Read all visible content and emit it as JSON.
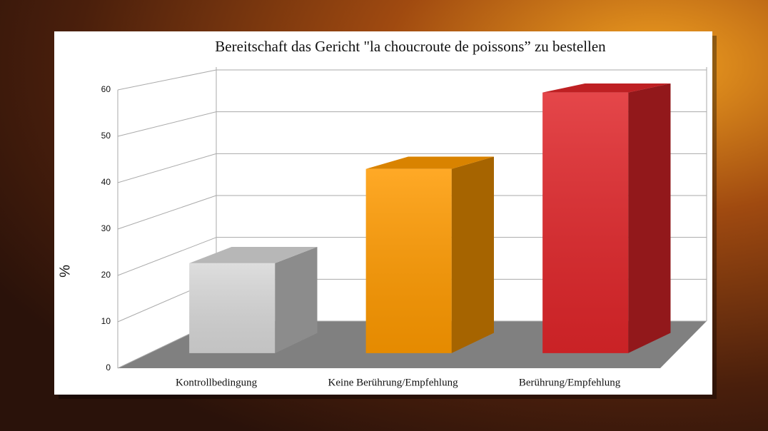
{
  "chart_data": {
    "type": "bar3d",
    "title": "Bereitschaft das Gericht \"la choucroute de poissons” zu bestellen",
    "y_label": "%",
    "categories": [
      "Kontrollbedingung",
      "Keine Berührung/Empfehlung",
      "Berührung/Empfehlung"
    ],
    "values": [
      20,
      41,
      58
    ],
    "colors": [
      "#d8d8d8",
      "#ff9a00",
      "#e0262a"
    ],
    "ylim": [
      0,
      60
    ],
    "yticks": [
      0,
      10,
      20,
      30,
      40,
      50,
      60
    ],
    "grid": true
  }
}
